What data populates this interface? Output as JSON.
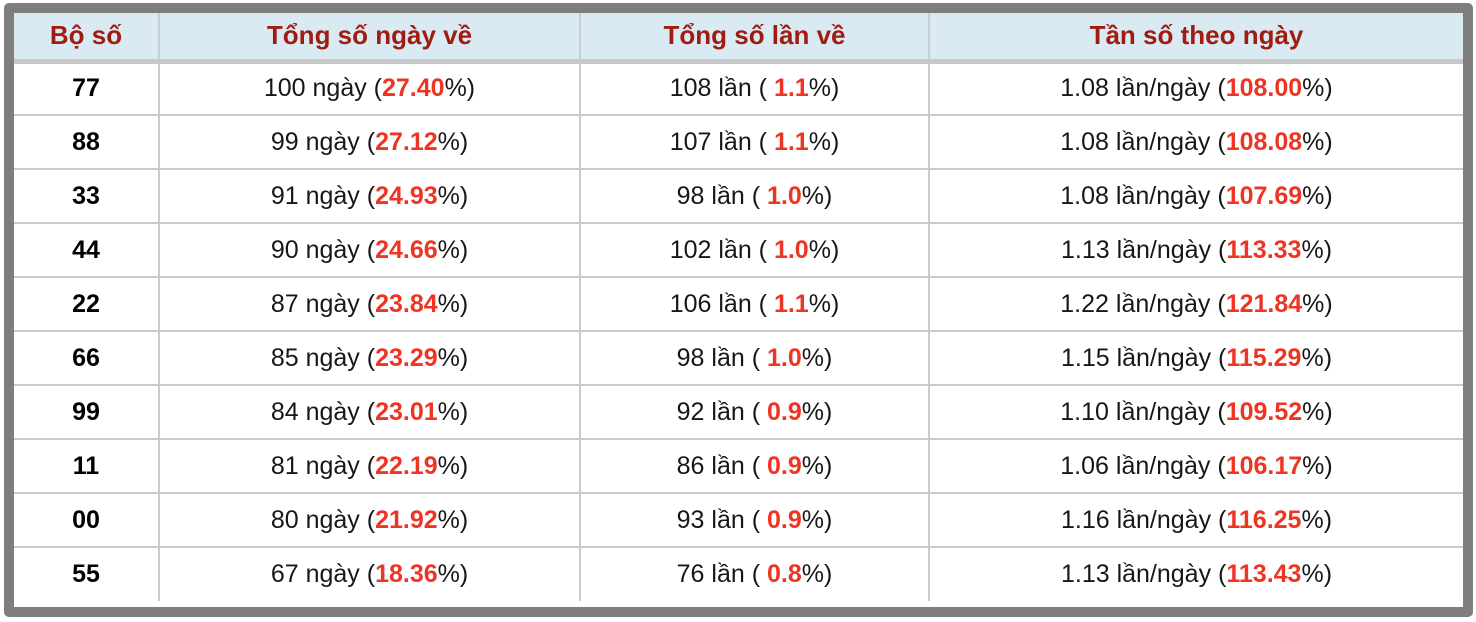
{
  "colors": {
    "accent_red": "#ee3524",
    "header_text": "#9e1c12",
    "header_bg": "#daeaf3",
    "frame_gray": "#7e7e7e",
    "divider_gray": "#cbcbcb"
  },
  "table": {
    "columns": [
      {
        "label": "Bộ số"
      },
      {
        "label": "Tổng số ngày về"
      },
      {
        "label": "Tổng số lần về"
      },
      {
        "label": "Tần số theo ngày"
      }
    ],
    "rows": [
      {
        "pair": "77",
        "days_pre": "100 ngày (",
        "days_red": "27.40",
        "days_post": "%)",
        "times_pre": "108 lần ( ",
        "times_red": "1.1",
        "times_post": "%)",
        "freq_pre": "1.08 lần/ngày (",
        "freq_red": "108.00",
        "freq_post": "%)"
      },
      {
        "pair": "88",
        "days_pre": "99 ngày (",
        "days_red": "27.12",
        "days_post": "%)",
        "times_pre": "107 lần ( ",
        "times_red": "1.1",
        "times_post": "%)",
        "freq_pre": "1.08 lần/ngày (",
        "freq_red": "108.08",
        "freq_post": "%)"
      },
      {
        "pair": "33",
        "days_pre": "91 ngày (",
        "days_red": "24.93",
        "days_post": "%)",
        "times_pre": "98 lần ( ",
        "times_red": "1.0",
        "times_post": "%)",
        "freq_pre": "1.08 lần/ngày (",
        "freq_red": "107.69",
        "freq_post": "%)"
      },
      {
        "pair": "44",
        "days_pre": "90 ngày (",
        "days_red": "24.66",
        "days_post": "%)",
        "times_pre": "102 lần ( ",
        "times_red": "1.0",
        "times_post": "%)",
        "freq_pre": "1.13 lần/ngày (",
        "freq_red": "113.33",
        "freq_post": "%)"
      },
      {
        "pair": "22",
        "days_pre": "87 ngày (",
        "days_red": "23.84",
        "days_post": "%)",
        "times_pre": "106 lần ( ",
        "times_red": "1.1",
        "times_post": "%)",
        "freq_pre": "1.22 lần/ngày (",
        "freq_red": "121.84",
        "freq_post": "%)"
      },
      {
        "pair": "66",
        "days_pre": "85 ngày (",
        "days_red": "23.29",
        "days_post": "%)",
        "times_pre": "98 lần ( ",
        "times_red": "1.0",
        "times_post": "%)",
        "freq_pre": "1.15 lần/ngày (",
        "freq_red": "115.29",
        "freq_post": "%)"
      },
      {
        "pair": "99",
        "days_pre": "84 ngày (",
        "days_red": "23.01",
        "days_post": "%)",
        "times_pre": "92 lần ( ",
        "times_red": "0.9",
        "times_post": "%)",
        "freq_pre": "1.10 lần/ngày (",
        "freq_red": "109.52",
        "freq_post": "%)"
      },
      {
        "pair": "11",
        "days_pre": "81 ngày (",
        "days_red": "22.19",
        "days_post": "%)",
        "times_pre": "86 lần ( ",
        "times_red": "0.9",
        "times_post": "%)",
        "freq_pre": "1.06 lần/ngày (",
        "freq_red": "106.17",
        "freq_post": "%)"
      },
      {
        "pair": "00",
        "days_pre": "80 ngày (",
        "days_red": "21.92",
        "days_post": "%)",
        "times_pre": "93 lần ( ",
        "times_red": "0.9",
        "times_post": "%)",
        "freq_pre": "1.16 lần/ngày (",
        "freq_red": "116.25",
        "freq_post": "%)"
      },
      {
        "pair": "55",
        "days_pre": "67 ngày (",
        "days_red": "18.36",
        "days_post": "%)",
        "times_pre": "76 lần ( ",
        "times_red": "0.8",
        "times_post": "%)",
        "freq_pre": "1.13 lần/ngày (",
        "freq_red": "113.43",
        "freq_post": "%)"
      }
    ]
  },
  "chart_data": {
    "type": "table",
    "columns": [
      "Bộ số",
      "Tổng số ngày về",
      "Tổng số lần về",
      "Tần số theo ngày"
    ],
    "rows": [
      [
        "77",
        "100 ngày (27.40%)",
        "108 lần ( 1.1%)",
        "1.08 lần/ngày (108.00%)"
      ],
      [
        "88",
        "99 ngày (27.12%)",
        "107 lần ( 1.1%)",
        "1.08 lần/ngày (108.08%)"
      ],
      [
        "33",
        "91 ngày (24.93%)",
        "98 lần ( 1.0%)",
        "1.08 lần/ngày (107.69%)"
      ],
      [
        "44",
        "90 ngày (24.66%)",
        "102 lần ( 1.0%)",
        "1.13 lần/ngày (113.33%)"
      ],
      [
        "22",
        "87 ngày (23.84%)",
        "106 lần ( 1.1%)",
        "1.22 lần/ngày (121.84%)"
      ],
      [
        "66",
        "85 ngày (23.29%)",
        "98 lần ( 1.0%)",
        "1.15 lần/ngày (115.29%)"
      ],
      [
        "99",
        "84 ngày (23.01%)",
        "92 lần ( 0.9%)",
        "1.10 lần/ngày (109.52%)"
      ],
      [
        "11",
        "81 ngày (22.19%)",
        "86 lần ( 0.9%)",
        "1.06 lần/ngày (106.17%)"
      ],
      [
        "00",
        "80 ngày (21.92%)",
        "93 lần ( 0.9%)",
        "1.16 lần/ngày (116.25%)"
      ],
      [
        "55",
        "67 ngày (18.36%)",
        "76 lần ( 0.8%)",
        "1.13 lần/ngày (113.43%)"
      ]
    ],
    "numeric": {
      "pairs": [
        "77",
        "88",
        "33",
        "44",
        "22",
        "66",
        "99",
        "11",
        "00",
        "55"
      ],
      "days": [
        100,
        99,
        91,
        90,
        87,
        85,
        84,
        81,
        80,
        67
      ],
      "days_pct": [
        27.4,
        27.12,
        24.93,
        24.66,
        23.84,
        23.29,
        23.01,
        22.19,
        21.92,
        18.36
      ],
      "times": [
        108,
        107,
        98,
        102,
        106,
        98,
        92,
        86,
        93,
        76
      ],
      "times_pct": [
        1.1,
        1.1,
        1.0,
        1.0,
        1.1,
        1.0,
        0.9,
        0.9,
        0.9,
        0.8
      ],
      "freq_per_day": [
        1.08,
        1.08,
        1.08,
        1.13,
        1.22,
        1.15,
        1.1,
        1.06,
        1.16,
        1.13
      ],
      "freq_pct": [
        108.0,
        108.08,
        107.69,
        113.33,
        121.84,
        115.29,
        109.52,
        106.17,
        116.25,
        113.43
      ]
    }
  }
}
